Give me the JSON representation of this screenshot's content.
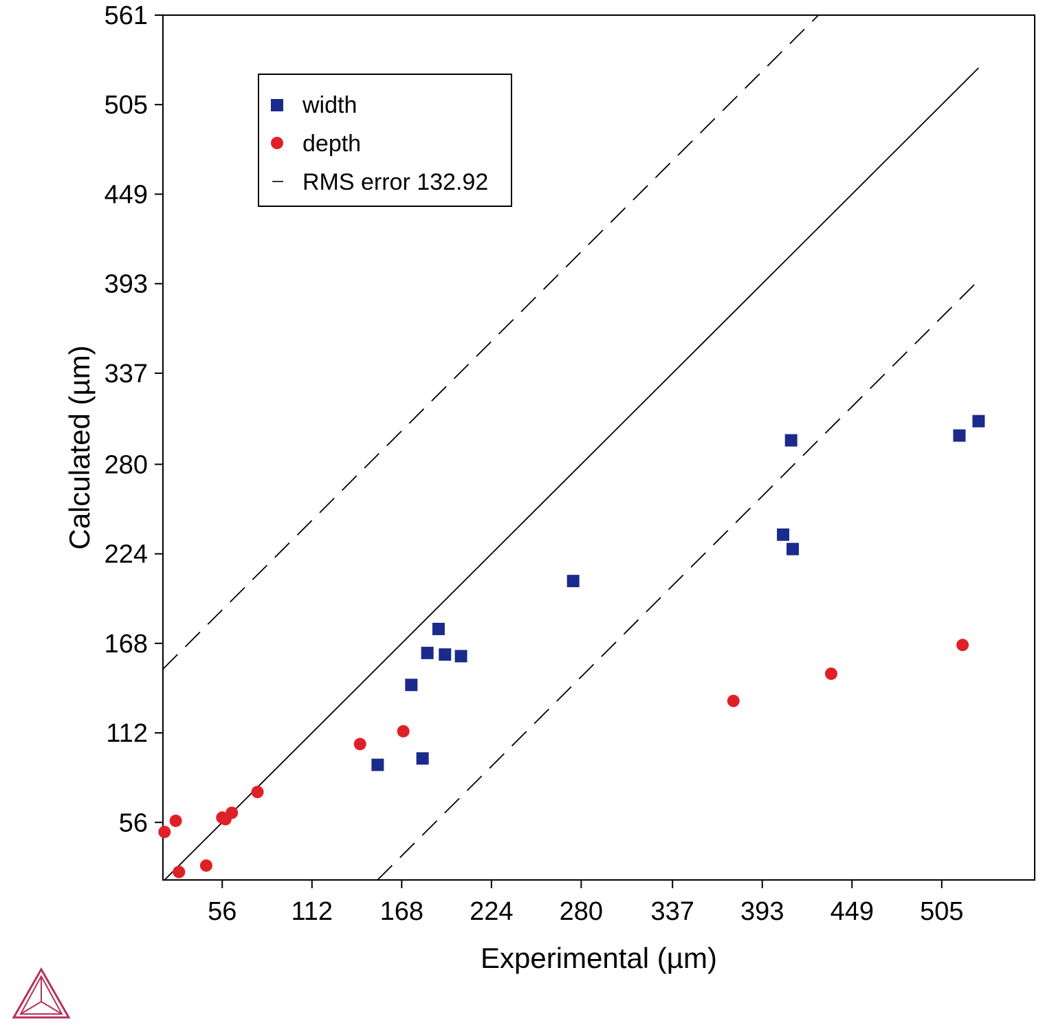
{
  "chart_data": {
    "type": "scatter",
    "title": "",
    "xlabel": "Experimental (µm)",
    "ylabel": "Calculated (µm)",
    "xlim": [
      19,
      563
    ],
    "ylim": [
      20,
      561
    ],
    "xticks": [
      "56",
      "112",
      "168",
      "224",
      "280",
      "337",
      "393",
      "449",
      "505"
    ],
    "xtick_values": [
      56,
      112,
      168,
      224,
      280,
      337,
      393,
      449,
      505
    ],
    "yticks": [
      "56",
      "112",
      "168",
      "224",
      "280",
      "337",
      "393",
      "449",
      "505",
      "561"
    ],
    "ytick_values": [
      56,
      112,
      168,
      224,
      280,
      337,
      393,
      449,
      505,
      561
    ],
    "legend_position": "top-left",
    "series": [
      {
        "name": "width",
        "marker": "square",
        "color": "#1a2b8c",
        "points": [
          [
            153,
            92
          ],
          [
            174,
            142
          ],
          [
            181,
            96
          ],
          [
            184,
            162
          ],
          [
            191,
            177
          ],
          [
            195,
            161
          ],
          [
            205,
            160
          ],
          [
            275,
            207
          ],
          [
            406,
            236
          ],
          [
            411,
            295
          ],
          [
            412,
            227
          ],
          [
            516,
            298
          ],
          [
            528,
            307
          ]
        ]
      },
      {
        "name": "depth",
        "marker": "circle",
        "color": "#e02027",
        "points": [
          [
            20,
            50
          ],
          [
            27,
            57
          ],
          [
            29,
            25
          ],
          [
            46,
            29
          ],
          [
            56,
            59
          ],
          [
            58,
            58
          ],
          [
            62,
            62
          ],
          [
            78,
            75
          ],
          [
            142,
            105
          ],
          [
            169,
            113
          ],
          [
            375,
            132
          ],
          [
            436,
            149
          ],
          [
            518,
            167
          ]
        ]
      }
    ],
    "reference_lines": [
      {
        "name": "RMS error 132.92",
        "style": "dashed",
        "offset": 132.92
      },
      {
        "name": "identity",
        "style": "solid",
        "offset": 0
      },
      {
        "name": "lower RMS bound",
        "style": "dashed",
        "offset": -132.92
      }
    ],
    "legend": [
      "width",
      "depth",
      "RMS error 132.92"
    ]
  },
  "logo": {
    "name": "thermo-calc-triangle-logo",
    "color": "#b5325a"
  }
}
